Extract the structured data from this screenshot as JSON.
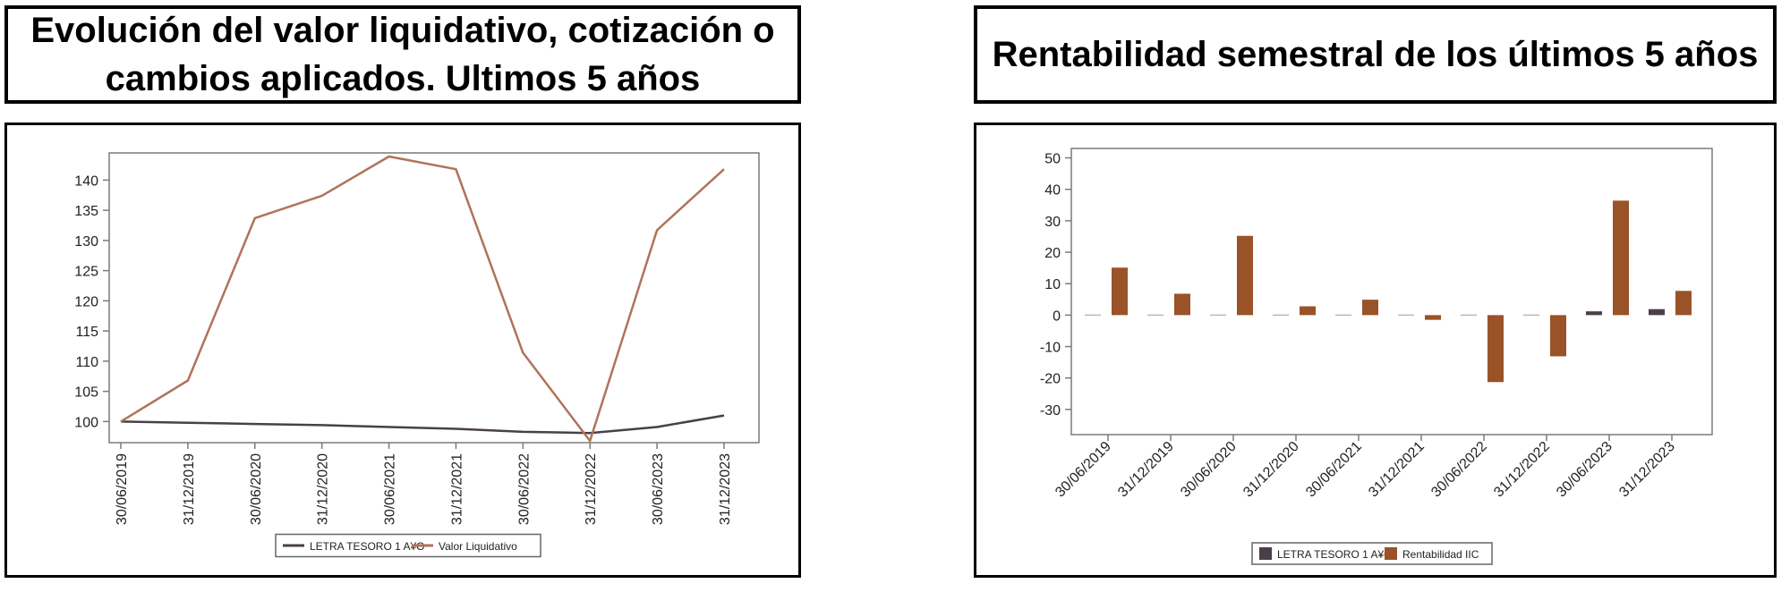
{
  "titles": {
    "left_line1": "Evolución del valor liquidativo, cotización o",
    "left_line2": "cambios aplicados. Ultimos 5 años",
    "right": "Rentabilidad semestral de los últimos 5 años"
  },
  "colors": {
    "benchmark": "#4a3f48",
    "fund_line": "#b0735a",
    "fund_bar": "#9a5228",
    "axis": "#7a7a7a"
  },
  "chart_data": [
    {
      "type": "line",
      "title": "Evolución del valor liquidativo, cotización o cambios aplicados. Ultimos 5 años",
      "categories": [
        "30/06/2019",
        "31/12/2019",
        "30/06/2020",
        "31/12/2020",
        "30/06/2021",
        "31/12/2021",
        "30/06/2022",
        "31/12/2022",
        "30/06/2023",
        "31/12/2023"
      ],
      "ylim": [
        96.5,
        144.5
      ],
      "yticks": [
        100,
        105,
        110,
        115,
        120,
        125,
        130,
        135,
        140
      ],
      "series": [
        {
          "name": "LETRA TESORO 1 A¥O",
          "values": [
            100,
            99.8,
            99.6,
            99.4,
            99.1,
            98.8,
            98.3,
            98.1,
            99.1,
            101
          ]
        },
        {
          "name": "Valor Liquidativo",
          "values": [
            100,
            106.8,
            133.7,
            137.4,
            143.9,
            141.8,
            111.4,
            96.8,
            131.7,
            141.8
          ]
        }
      ],
      "legend": "bottom"
    },
    {
      "type": "bar",
      "title": "Rentabilidad semestral de los últimos 5 años",
      "categories": [
        "30/06/2019",
        "31/12/2019",
        "30/06/2020",
        "31/12/2020",
        "30/06/2021",
        "31/12/2021",
        "30/06/2022",
        "31/12/2022",
        "30/06/2023",
        "31/12/2023"
      ],
      "ylim": [
        -38,
        53
      ],
      "yticks": [
        -30,
        -20,
        -10,
        0,
        10,
        20,
        30,
        40,
        50
      ],
      "series": [
        {
          "name": "LETRA TESORO 1 A¥O",
          "values": [
            0,
            0,
            0,
            0,
            -0.1,
            -0.1,
            -0.4,
            0,
            1.2,
            1.9
          ]
        },
        {
          "name": "Rentabilidad IIC",
          "values": [
            15.1,
            6.8,
            25.2,
            2.8,
            4.9,
            -1.5,
            -21.3,
            -13.1,
            36.4,
            7.7
          ]
        }
      ],
      "legend": "bottom"
    }
  ]
}
